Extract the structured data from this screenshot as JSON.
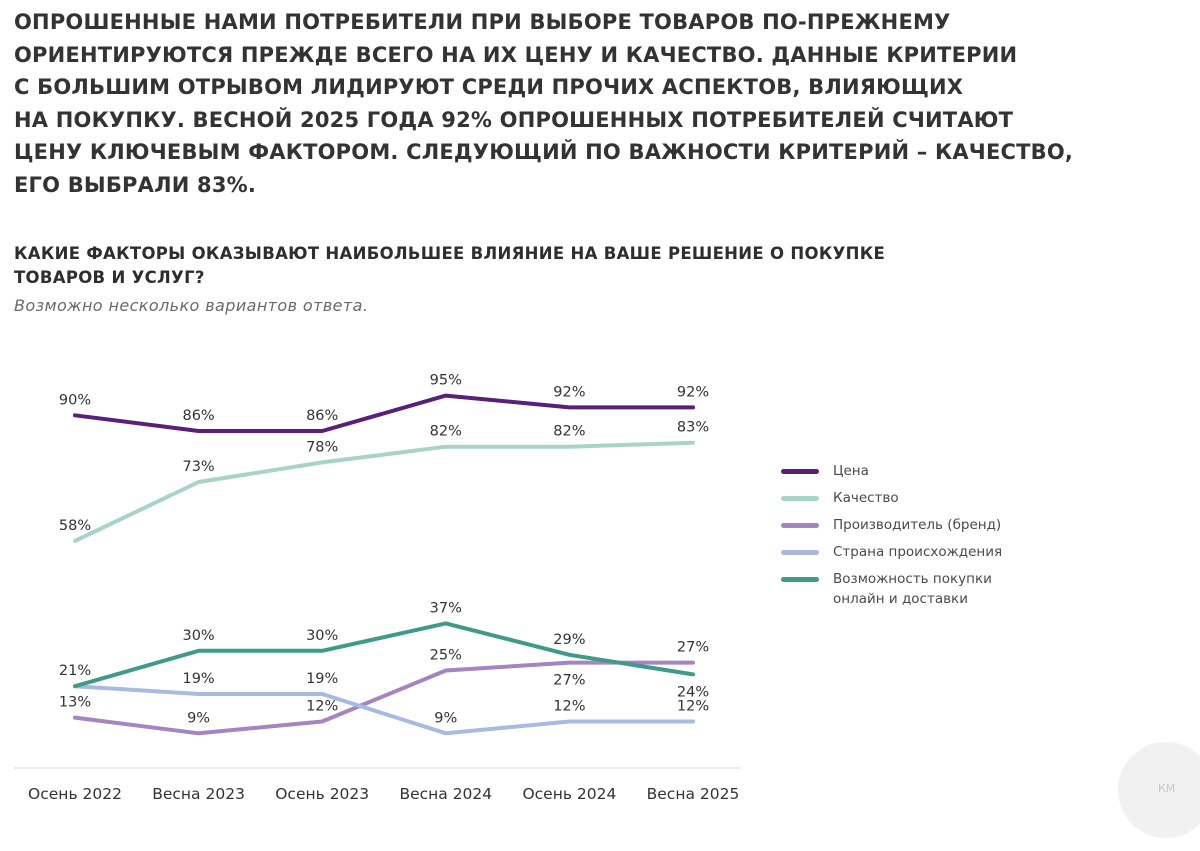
{
  "headline": {
    "lines": [
      "ОПРОШЕННЫЕ НАМИ ПОТРЕБИТЕЛИ ПРИ ВЫБОРЕ ТОВАРОВ ПО-ПРЕЖНЕМУ",
      "ОРИЕНТИРУЮТСЯ ПРЕЖДЕ ВСЕГО НА ИХ ЦЕНУ И КАЧЕСТВО. ДАННЫЕ КРИТЕРИИ",
      "С БОЛЬШИМ ОТРЫВОМ ЛИДИРУЮТ СРЕДИ ПРОЧИХ АСПЕКТОВ, ВЛИЯЮЩИХ",
      "НА ПОКУПКУ. ВЕСНОЙ 2025 ГОДА 92% ОПРОШЕННЫХ ПОТРЕБИТЕЛЕЙ СЧИТАЮТ",
      "ЦЕНУ КЛЮЧЕВЫМ ФАКТОРОМ. СЛЕДУЮЩИЙ ПО ВАЖНОСТИ КРИТЕРИЙ – КАЧЕСТВО,",
      "ЕГО ВЫБРАЛИ 83%."
    ]
  },
  "chart_data": {
    "type": "line",
    "title": "КАКИЕ ФАКТОРЫ ОКАЗЫВАЮТ НАИБОЛЬШЕЕ ВЛИЯНИЕ НА ВАШЕ РЕШЕНИЕ О ПОКУПКЕ ТОВАРОВ И УСЛУГ?",
    "title_lines": [
      "КАКИЕ ФАКТОРЫ ОКАЗЫВАЮТ НАИБОЛЬШЕЕ ВЛИЯНИЕ НА ВАШЕ РЕШЕНИЕ О ПОКУПКЕ",
      "ТОВАРОВ И УСЛУГ?"
    ],
    "subtitle": "Возможно несколько вариантов ответа.",
    "categories": [
      "Осень 2022",
      "Весна 2023",
      "Осень 2023",
      "Весна 2024",
      "Осень 2024",
      "Весна 2025"
    ],
    "unit": "%",
    "ylim": [
      5,
      100
    ],
    "grid": false,
    "legend_position": "right",
    "series": [
      {
        "name": "Цена",
        "legend_lines": [
          "Цена"
        ],
        "color": "#5a1f78",
        "values": [
          90,
          86,
          86,
          95,
          92,
          92
        ],
        "label_side": [
          "above",
          "above",
          "above",
          "above",
          "above",
          "above"
        ]
      },
      {
        "name": "Качество",
        "legend_lines": [
          "Качество"
        ],
        "color": "#a8d4c8",
        "values": [
          58,
          73,
          78,
          82,
          82,
          83
        ],
        "label_side": [
          "above",
          "above",
          "above",
          "above",
          "above",
          "above"
        ]
      },
      {
        "name": "Производитель (бренд)",
        "legend_lines": [
          "Производитель (бренд)"
        ],
        "color": "#a585c0",
        "values": [
          13,
          9,
          12,
          25,
          27,
          27
        ],
        "label_side": [
          "above",
          "above",
          "above",
          "above",
          "below",
          "above"
        ]
      },
      {
        "name": "Страна происхождения",
        "legend_lines": [
          "Страна происхождения"
        ],
        "color": "#a9b9df",
        "values": [
          21,
          19,
          19,
          9,
          12,
          12
        ],
        "label_side": [
          "above",
          "above",
          "above",
          "above",
          "above",
          "above"
        ]
      },
      {
        "name": "Возможность покупки онлайн и доставки",
        "legend_lines": [
          "Возможность покупки",
          "онлайн и доставки"
        ],
        "color": "#3f9a88",
        "values": [
          21,
          30,
          30,
          37,
          29,
          24
        ],
        "label_side": [
          "none",
          "above",
          "above",
          "above",
          "above",
          "below"
        ]
      }
    ]
  },
  "watermark": {
    "text": "КМ"
  }
}
